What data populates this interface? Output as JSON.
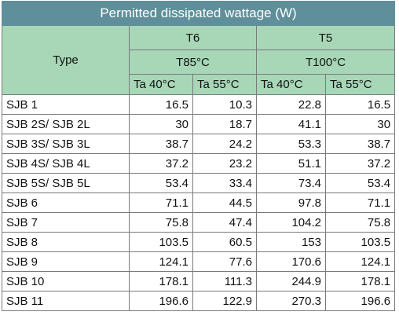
{
  "table": {
    "title": "Permitted dissipated wattage (W)",
    "type_header": "Type",
    "groups": [
      {
        "class": "T6",
        "temp": "T85°C",
        "ambients": [
          "Ta  40°C",
          "Ta  55°C"
        ]
      },
      {
        "class": "T5",
        "temp": "T100°C",
        "ambients": [
          "Ta  40°C",
          "Ta  55°C"
        ]
      }
    ],
    "rows": [
      {
        "type": "SJB 1",
        "values": [
          "16.5",
          "10.3",
          "22.8",
          "16.5"
        ]
      },
      {
        "type": "SJB 2S/ SJB 2L",
        "values": [
          "30",
          "18.7",
          "41.1",
          "30"
        ]
      },
      {
        "type": "SJB 3S/ SJB 3L",
        "values": [
          "38.7",
          "24.2",
          "53.3",
          "38.7"
        ]
      },
      {
        "type": "SJB 4S/ SJB 4L",
        "values": [
          "37.2",
          "23.2",
          "51.1",
          "37.2"
        ]
      },
      {
        "type": "SJB 5S/ SJB 5L",
        "values": [
          "53.4",
          "33.4",
          "73.4",
          "53.4"
        ]
      },
      {
        "type": "SJB 6",
        "values": [
          "71.1",
          "44.5",
          "97.8",
          "71.1"
        ]
      },
      {
        "type": "SJB 7",
        "values": [
          "75.8",
          "47.4",
          "104.2",
          "75.8"
        ]
      },
      {
        "type": "SJB 8",
        "values": [
          "103.5",
          "60.5",
          "153",
          "103.5"
        ]
      },
      {
        "type": "SJB 9",
        "values": [
          "124.1",
          "77.6",
          "170.6",
          "124.1"
        ]
      },
      {
        "type": "SJB 10",
        "values": [
          "178.1",
          "111.3",
          "244.9",
          "178.1"
        ]
      },
      {
        "type": "SJB 11",
        "values": [
          "196.6",
          "122.9",
          "270.3",
          "196.6"
        ]
      }
    ]
  }
}
